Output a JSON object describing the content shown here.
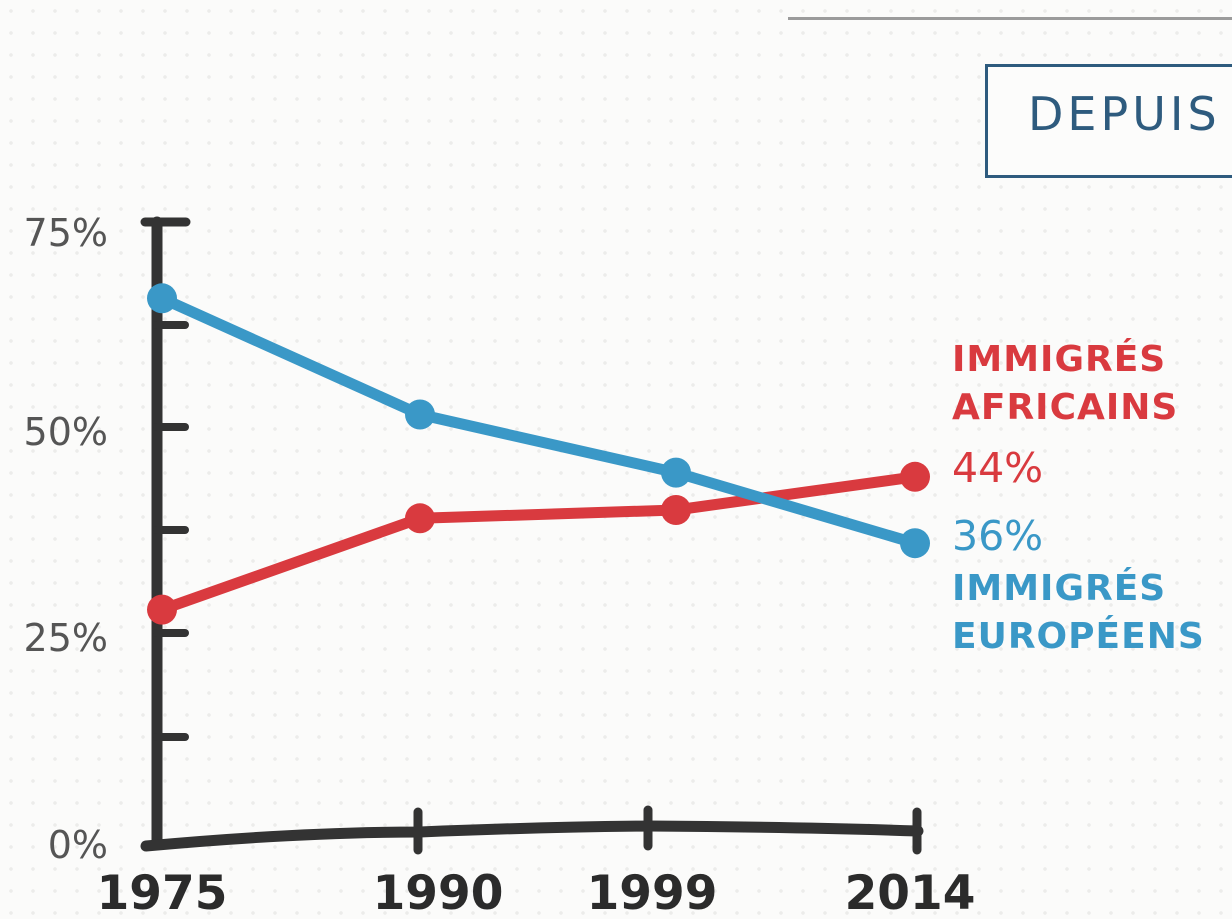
{
  "header": {
    "title": "DEPUIS"
  },
  "chart_data": {
    "type": "line",
    "categories": [
      "1975",
      "1990",
      "1999",
      "2014"
    ],
    "yticks": [
      "0%",
      "25%",
      "50%",
      "75%"
    ],
    "ylim": [
      0,
      75
    ],
    "series": [
      {
        "name": "IMMIGRÉS AFRICAINS",
        "name_lines": [
          "IMMIGRÉS",
          "AFRICAINS"
        ],
        "end_label": "44%",
        "color": "#d93a3f",
        "values": [
          28,
          39,
          40,
          44
        ]
      },
      {
        "name": "IMMIGRÉS EUROPÉENS",
        "name_lines": [
          "IMMIGRÉS",
          "EUROPÉENS"
        ],
        "end_label": "36%",
        "color": "#3a98c7",
        "values": [
          65.5,
          51.5,
          44.5,
          36
        ]
      }
    ],
    "axis_color": "#333333"
  }
}
